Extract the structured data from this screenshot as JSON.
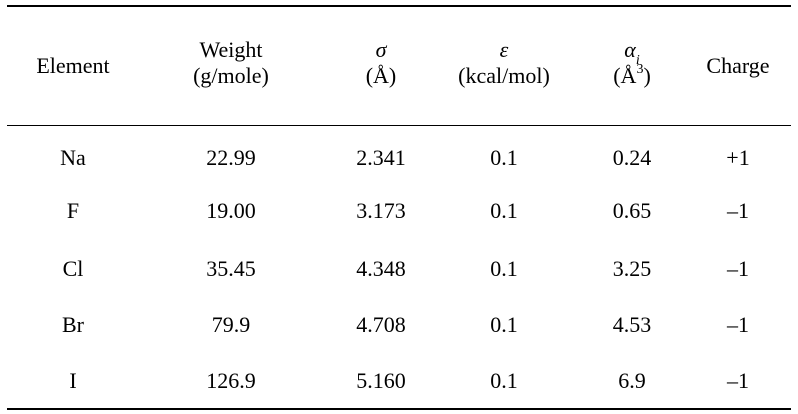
{
  "headers": {
    "element": "Element",
    "weight_line1": "Weight",
    "weight_line2": "(g/mole)",
    "sigma_symbol": "σ",
    "sigma_unit": "(Å)",
    "epsilon_symbol": "ε",
    "epsilon_unit": "(kcal/mol)",
    "alpha_symbol": "α",
    "alpha_sub": "i",
    "alpha_unit_open": "(Å",
    "alpha_unit_sup": "3",
    "alpha_unit_close": ")",
    "charge": "Charge"
  },
  "rows": [
    {
      "element": "Na",
      "weight": "22.99",
      "sigma": "2.341",
      "epsilon": "0.1",
      "alpha": "0.24",
      "charge": "+1"
    },
    {
      "element": "F",
      "weight": "19.00",
      "sigma": "3.173",
      "epsilon": "0.1",
      "alpha": "0.65",
      "charge": "–1"
    },
    {
      "element": "Cl",
      "weight": "35.45",
      "sigma": "4.348",
      "epsilon": "0.1",
      "alpha": "3.25",
      "charge": "–1"
    },
    {
      "element": "Br",
      "weight": "79.9",
      "sigma": "4.708",
      "epsilon": "0.1",
      "alpha": "4.53",
      "charge": "–1"
    },
    {
      "element": "I",
      "weight": "126.9",
      "sigma": "5.160",
      "epsilon": "0.1",
      "alpha": "6.9",
      "charge": "–1"
    }
  ]
}
